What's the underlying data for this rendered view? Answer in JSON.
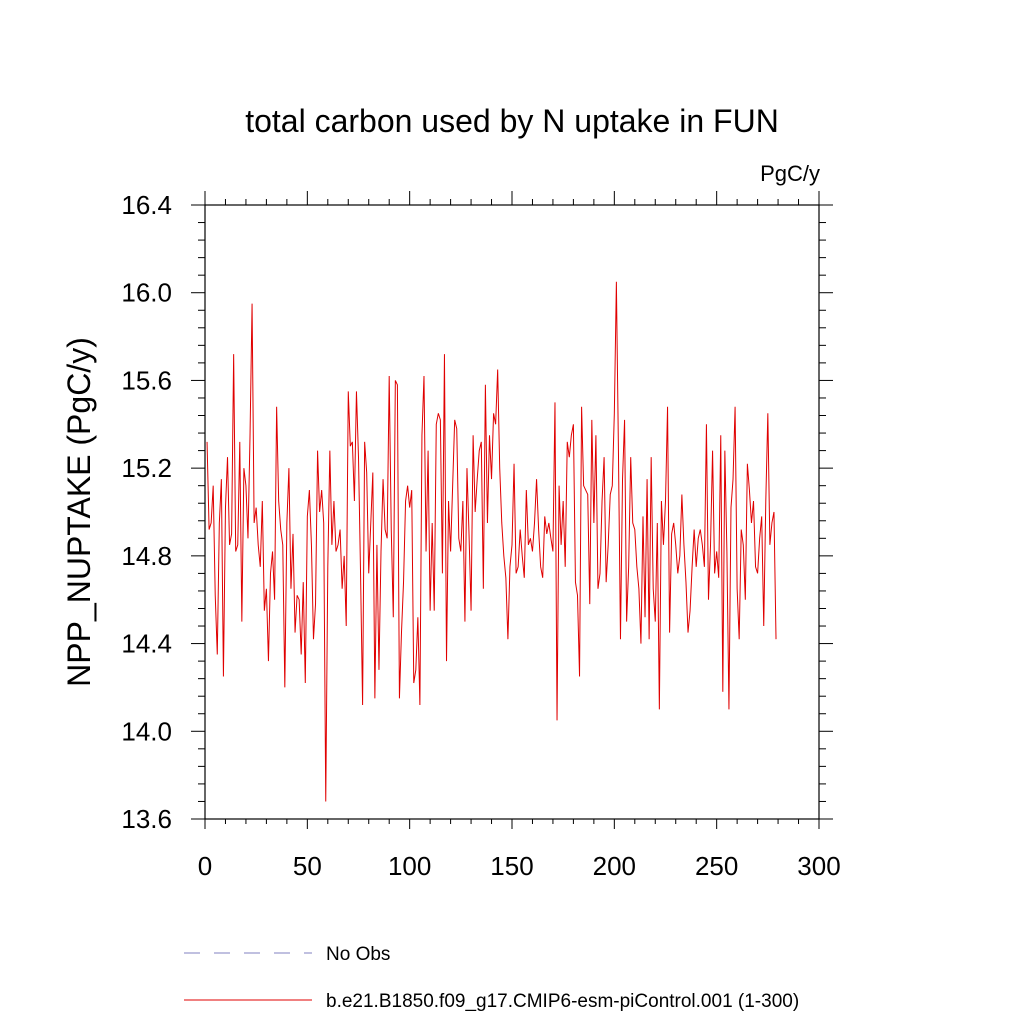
{
  "chart_data": {
    "type": "line",
    "title": "total carbon used by N uptake in FUN",
    "units_label": "PgC/y",
    "xlabel": "",
    "ylabel": "NPP_NUPTAKE  (PgC/y)",
    "xlim": [
      0,
      300
    ],
    "ylim": [
      13.6,
      16.4
    ],
    "xticks": [
      0,
      50,
      100,
      150,
      200,
      250,
      300
    ],
    "xtick_labels": [
      "0",
      "50",
      "100",
      "150",
      "200",
      "250",
      "300"
    ],
    "yticks": [
      13.6,
      14.0,
      14.4,
      14.8,
      15.2,
      15.6,
      16.0,
      16.4
    ],
    "ytick_labels": [
      "13.6",
      "14.0",
      "14.4",
      "14.8",
      "15.2",
      "15.6",
      "16.0",
      "16.4"
    ],
    "grid": false,
    "legend": {
      "position": "bottom",
      "entries": [
        {
          "label": "No Obs",
          "color": "#8080c0",
          "dash": "dashed"
        },
        {
          "label": "b.e21.B1850.f09_g17.CMIP6-esm-piControl.001 (1-300)",
          "color": "#e00000",
          "dash": "solid"
        }
      ]
    },
    "series": [
      {
        "name": "b.e21.B1850.f09_g17.CMIP6-esm-piControl.001 (1-300)",
        "color": "#e00000",
        "x_start": 1,
        "x_step": 1,
        "values": [
          15.32,
          14.92,
          14.95,
          15.12,
          14.62,
          14.35,
          14.95,
          15.15,
          14.25,
          15.02,
          15.25,
          14.85,
          14.9,
          15.72,
          14.82,
          14.85,
          15.32,
          14.5,
          15.2,
          15.12,
          14.88,
          15.35,
          15.95,
          14.95,
          15.02,
          14.85,
          14.75,
          15.05,
          14.55,
          14.65,
          14.32,
          14.72,
          14.82,
          14.6,
          15.48,
          15.05,
          14.92,
          14.85,
          14.2,
          14.95,
          15.2,
          14.65,
          14.9,
          14.45,
          14.62,
          14.6,
          14.35,
          14.68,
          14.22,
          14.98,
          15.1,
          14.85,
          14.42,
          14.58,
          15.28,
          15.0,
          15.1,
          14.95,
          13.68,
          14.75,
          15.28,
          14.85,
          15.05,
          14.82,
          14.85,
          14.92,
          14.65,
          14.8,
          14.48,
          15.55,
          15.3,
          15.32,
          15.05,
          15.55,
          15.25,
          14.72,
          14.12,
          15.32,
          15.18,
          14.72,
          14.95,
          15.18,
          14.15,
          14.85,
          14.28,
          14.82,
          15.15,
          14.92,
          14.88,
          15.62,
          14.92,
          14.52,
          15.6,
          15.58,
          14.15,
          14.45,
          14.68,
          15.05,
          15.12,
          15.02,
          15.1,
          14.22,
          14.28,
          14.52,
          14.12,
          15.35,
          15.62,
          14.82,
          15.28,
          14.55,
          14.95,
          14.55,
          15.4,
          15.45,
          15.42,
          14.72,
          15.72,
          14.32,
          15.05,
          14.82,
          15.12,
          15.42,
          15.38,
          14.88,
          14.82,
          15.05,
          14.5,
          15.2,
          14.9,
          14.55,
          15.35,
          15.0,
          15.15,
          15.28,
          15.32,
          14.65,
          15.58,
          14.95,
          15.35,
          15.15,
          15.45,
          15.4,
          15.65,
          15.2,
          14.95,
          14.8,
          14.7,
          14.42,
          14.75,
          14.85,
          15.22,
          14.72,
          14.75,
          14.92,
          14.8,
          14.7,
          15.1,
          14.85,
          14.88,
          14.82,
          14.95,
          15.15,
          14.92,
          14.75,
          14.7,
          14.98,
          14.9,
          14.95,
          14.88,
          14.82,
          15.5,
          14.05,
          15.12,
          14.85,
          15.05,
          14.75,
          15.32,
          15.25,
          15.35,
          15.4,
          14.68,
          14.62,
          14.25,
          15.48,
          15.12,
          15.1,
          15.08,
          14.58,
          15.42,
          14.95,
          15.35,
          14.65,
          14.72,
          15.05,
          15.25,
          14.68,
          14.85,
          15.08,
          15.12,
          15.45,
          16.05,
          15.28,
          14.42,
          15.15,
          15.42,
          14.5,
          14.75,
          15.25,
          14.95,
          14.92,
          14.75,
          14.65,
          14.4,
          14.98,
          14.52,
          15.15,
          14.42,
          15.25,
          14.65,
          14.5,
          14.95,
          14.1,
          15.05,
          14.85,
          15.05,
          15.48,
          14.45,
          14.9,
          14.95,
          14.85,
          14.72,
          14.8,
          15.08,
          14.85,
          14.68,
          14.45,
          14.55,
          14.75,
          14.92,
          14.75,
          14.88,
          14.92,
          14.85,
          14.75,
          15.4,
          14.6,
          14.85,
          15.28,
          14.72,
          14.82,
          14.7,
          15.35,
          14.18,
          15.28,
          14.82,
          14.1,
          15.02,
          15.15,
          15.48,
          14.65,
          14.42,
          14.92,
          14.85,
          14.6,
          15.22,
          15.1,
          14.95,
          15.05,
          14.75,
          14.72,
          14.88,
          14.98,
          14.48,
          15.05,
          15.45,
          14.85,
          14.95,
          15.0,
          14.42
        ]
      }
    ]
  }
}
